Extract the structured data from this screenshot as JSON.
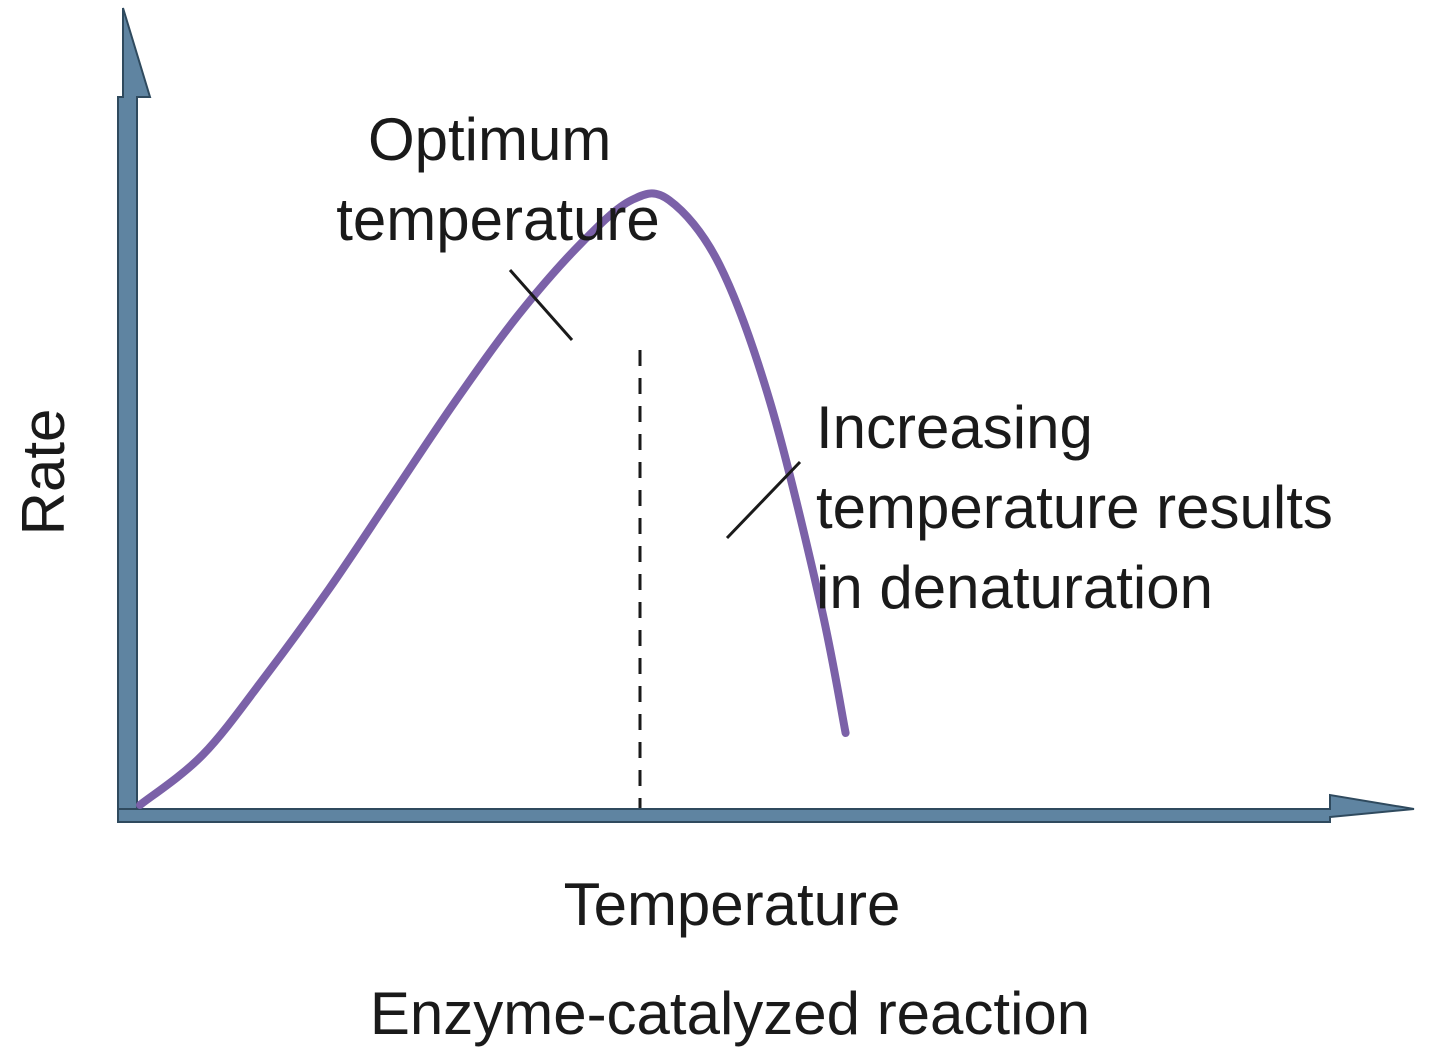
{
  "chart_data": {
    "type": "line",
    "title": "",
    "caption": "Enzyme-catalyzed reaction",
    "xlabel": "Temperature",
    "ylabel": "Rate",
    "xlim": [
      0,
      10
    ],
    "ylim": [
      0,
      10
    ],
    "grid": false,
    "series": [
      {
        "x": [
          0,
          0.5,
          1,
          1.5,
          2,
          2.5,
          3,
          3.5,
          3.9,
          4.2,
          4.6,
          5,
          5.4,
          5.6
        ],
        "values": [
          0,
          0.7,
          1.8,
          3.0,
          4.3,
          5.6,
          6.8,
          7.8,
          8.4,
          8.4,
          7.5,
          5.6,
          2.8,
          1.0
        ],
        "color": "#7b61a8"
      }
    ],
    "optimum_x": 4.0,
    "annotations": [
      {
        "id": "optimum",
        "lines": [
          "Optimum",
          "temperature"
        ]
      },
      {
        "id": "denaturation",
        "lines": [
          "Increasing",
          "temperature results",
          "in denaturation"
        ]
      }
    ],
    "colors": {
      "curve": "#7b61a8",
      "axis_fill": "#5f84a1",
      "axis_stroke": "#2f4a5e",
      "text": "#1a1a1a"
    }
  }
}
